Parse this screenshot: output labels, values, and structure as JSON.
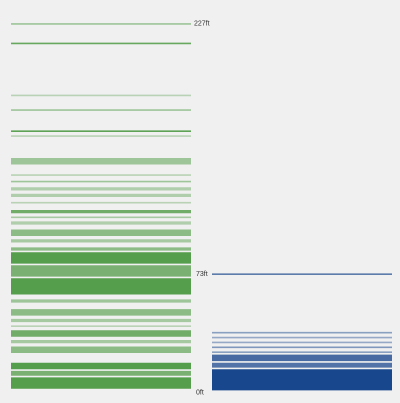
{
  "chart_data": [
    {
      "type": "strip",
      "color": "#3a8f2e",
      "top_label": "227ft",
      "ylim": [
        0,
        227
      ],
      "stripes": [
        {
          "from": 226,
          "to": 227,
          "opacity": 0.45
        },
        {
          "from": 214,
          "to": 215,
          "opacity": 0.75
        },
        {
          "from": 182,
          "to": 183,
          "opacity": 0.3
        },
        {
          "from": 173,
          "to": 174,
          "opacity": 0.45
        },
        {
          "from": 160,
          "to": 161,
          "opacity": 0.8
        },
        {
          "from": 157,
          "to": 158,
          "opacity": 0.3
        },
        {
          "from": 140,
          "to": 144,
          "opacity": 0.45
        },
        {
          "from": 133,
          "to": 134,
          "opacity": 0.3
        },
        {
          "from": 129,
          "to": 130,
          "opacity": 0.45
        },
        {
          "from": 124,
          "to": 126,
          "opacity": 0.35
        },
        {
          "from": 120,
          "to": 122,
          "opacity": 0.35
        },
        {
          "from": 116,
          "to": 117,
          "opacity": 0.3
        },
        {
          "from": 110,
          "to": 112,
          "opacity": 0.7
        },
        {
          "from": 107,
          "to": 108,
          "opacity": 0.4
        },
        {
          "from": 103,
          "to": 105,
          "opacity": 0.35
        },
        {
          "from": 96,
          "to": 100,
          "opacity": 0.55
        },
        {
          "from": 92,
          "to": 94,
          "opacity": 0.4
        },
        {
          "from": 87,
          "to": 89,
          "opacity": 0.55
        },
        {
          "from": 79,
          "to": 86,
          "opacity": 0.85
        },
        {
          "from": 71,
          "to": 78,
          "opacity": 0.65
        },
        {
          "from": 60,
          "to": 70,
          "opacity": 0.85
        },
        {
          "from": 55,
          "to": 57,
          "opacity": 0.45
        },
        {
          "from": 47,
          "to": 51,
          "opacity": 0.55
        },
        {
          "from": 43,
          "to": 45,
          "opacity": 0.4
        },
        {
          "from": 40,
          "to": 41,
          "opacity": 0.3
        },
        {
          "from": 34,
          "to": 38,
          "opacity": 0.7
        },
        {
          "from": 30,
          "to": 32,
          "opacity": 0.4
        },
        {
          "from": 24,
          "to": 28,
          "opacity": 0.55
        },
        {
          "from": 14,
          "to": 18,
          "opacity": 0.85
        },
        {
          "from": 10,
          "to": 13,
          "opacity": 0.65
        },
        {
          "from": 2,
          "to": 9,
          "opacity": 0.85
        }
      ]
    },
    {
      "type": "strip",
      "color": "#0d3d87",
      "top_label": "73ft",
      "bottom_label": "0ft",
      "ylim": [
        0,
        73
      ],
      "stripes": [
        {
          "from": 72,
          "to": 73,
          "opacity": 0.65
        },
        {
          "from": 36,
          "to": 37,
          "opacity": 0.45
        },
        {
          "from": 33,
          "to": 34,
          "opacity": 0.4
        },
        {
          "from": 30,
          "to": 31,
          "opacity": 0.4
        },
        {
          "from": 27,
          "to": 28,
          "opacity": 0.5
        },
        {
          "from": 24,
          "to": 25,
          "opacity": 0.45
        },
        {
          "from": 19,
          "to": 23,
          "opacity": 0.75
        },
        {
          "from": 15,
          "to": 18,
          "opacity": 0.7
        },
        {
          "from": 1,
          "to": 14,
          "opacity": 0.95
        }
      ]
    }
  ]
}
